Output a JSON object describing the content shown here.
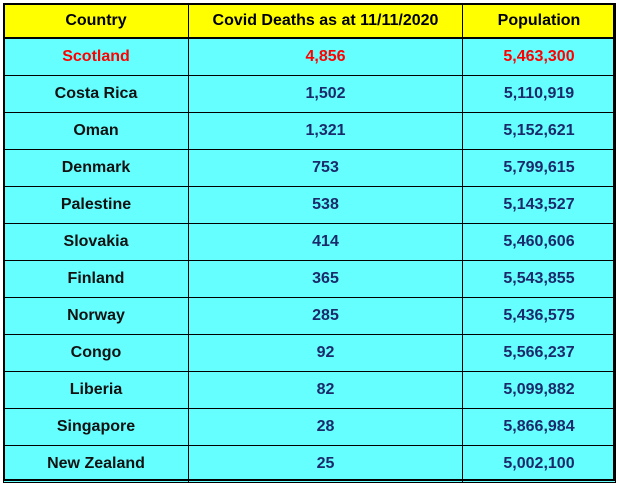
{
  "table": {
    "headers": {
      "country": "Country",
      "deaths": "Covid Deaths as at 11/11/2020",
      "population": "Population"
    },
    "rows": [
      {
        "country": "Scotland",
        "deaths": "4,856",
        "population": "5,463,300",
        "highlight": true
      },
      {
        "country": "Costa Rica",
        "deaths": "1,502",
        "population": "5,110,919",
        "highlight": false
      },
      {
        "country": "Oman",
        "deaths": "1,321",
        "population": "5,152,621",
        "highlight": false
      },
      {
        "country": "Denmark",
        "deaths": "753",
        "population": "5,799,615",
        "highlight": false
      },
      {
        "country": "Palestine",
        "deaths": "538",
        "population": "5,143,527",
        "highlight": false
      },
      {
        "country": "Slovakia",
        "deaths": "414",
        "population": "5,460,606",
        "highlight": false
      },
      {
        "country": "Finland",
        "deaths": "365",
        "population": "5,543,855",
        "highlight": false
      },
      {
        "country": "Norway",
        "deaths": "285",
        "population": "5,436,575",
        "highlight": false
      },
      {
        "country": "Congo",
        "deaths": "92",
        "population": "5,566,237",
        "highlight": false
      },
      {
        "country": "Liberia",
        "deaths": "82",
        "population": "5,099,882",
        "highlight": false
      },
      {
        "country": "Singapore",
        "deaths": "28",
        "population": "5,866,984",
        "highlight": false
      },
      {
        "country": "New Zealand",
        "deaths": "25",
        "population": "5,002,100",
        "highlight": false
      }
    ]
  },
  "colors": {
    "header_background": "#ffff00",
    "cell_background": "#66ffff",
    "highlight_text": "#ff0000",
    "value_text": "#1a2a6a"
  }
}
